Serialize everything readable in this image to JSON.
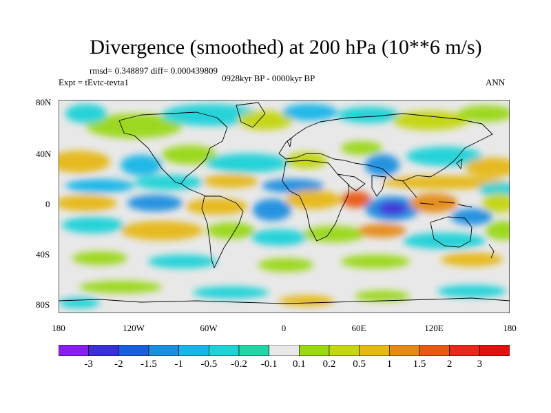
{
  "title": "Divergence (smoothed) at 200 hPa (10**6 m/s)",
  "stats": {
    "rmsd_diff": "rmsd= 0.348897 diff= 0.000439809",
    "expt": "Expt = tEvtc-tevta1",
    "period": "0928kyr BP - 0000kyr BP",
    "season": "ANN"
  },
  "axes": {
    "lat_labels": [
      "80N",
      "40N",
      "0",
      "40S",
      "80S"
    ],
    "lon_labels": [
      "180",
      "120W",
      "60W",
      "0",
      "60E",
      "120E",
      "180"
    ]
  },
  "colorbar": {
    "labels": [
      "-3",
      "-2",
      "-1.5",
      "-1",
      "-0.5",
      "-0.2",
      "-0.1",
      "0.1",
      "0.2",
      "0.5",
      "1",
      "1.5",
      "2",
      "3"
    ],
    "colors": [
      "#8a1ef0",
      "#3a2fd8",
      "#1a5fe0",
      "#1a8fe0",
      "#18b6e8",
      "#1fd2d8",
      "#22d6a6",
      "#e8e8e8",
      "#9ad812",
      "#c4d610",
      "#e6b812",
      "#e68a16",
      "#e85a12",
      "#e8281a",
      "#e01010"
    ]
  }
}
